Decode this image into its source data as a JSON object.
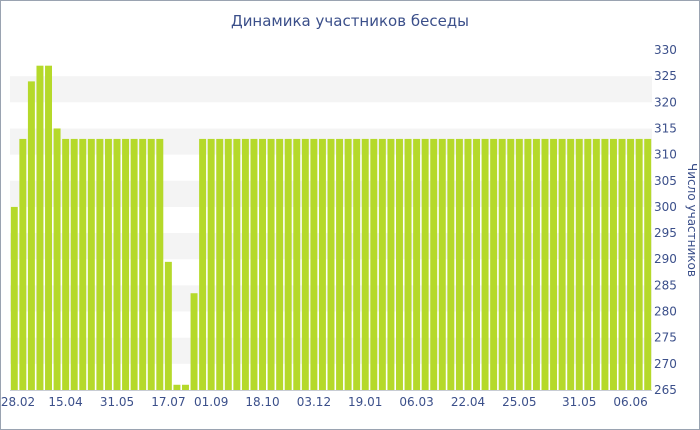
{
  "chart_data": {
    "type": "bar",
    "title": "Динамика участников беседы",
    "ylabel": "Число участников",
    "xlabel": "",
    "ylim": [
      265,
      330
    ],
    "y_ticks": [
      265,
      270,
      275,
      280,
      285,
      290,
      295,
      300,
      305,
      310,
      315,
      320,
      325,
      330
    ],
    "x_tick_labels": [
      "28.02",
      "15.04",
      "31.05",
      "17.07",
      "01.09",
      "18.10",
      "03.12",
      "19.01",
      "06.03",
      "22.04",
      "25.05",
      "31.05",
      "06.06"
    ],
    "x_tick_bar_index": [
      0,
      6,
      12,
      18,
      23,
      29,
      35,
      41,
      47,
      53,
      59,
      66,
      72
    ],
    "color": "#b5d92a",
    "values": [
      300,
      313,
      324,
      327,
      327,
      315,
      313,
      313,
      313,
      313,
      313,
      313,
      313,
      313,
      313,
      313,
      313,
      313,
      289.5,
      266,
      266,
      283.5,
      313,
      313,
      313,
      313,
      313,
      313,
      313,
      313,
      313,
      313,
      313,
      313,
      313,
      313,
      313,
      313,
      313,
      313,
      313,
      313,
      313,
      313,
      313,
      313,
      313,
      313,
      313,
      313,
      313,
      313,
      313,
      313,
      313,
      313,
      313,
      313,
      313,
      313,
      313,
      313,
      313,
      313,
      313,
      313,
      313,
      313,
      313,
      313,
      313,
      313,
      313,
      313,
      313
    ],
    "grid": "alternating horizontal bands",
    "y_axis_position": "right"
  }
}
